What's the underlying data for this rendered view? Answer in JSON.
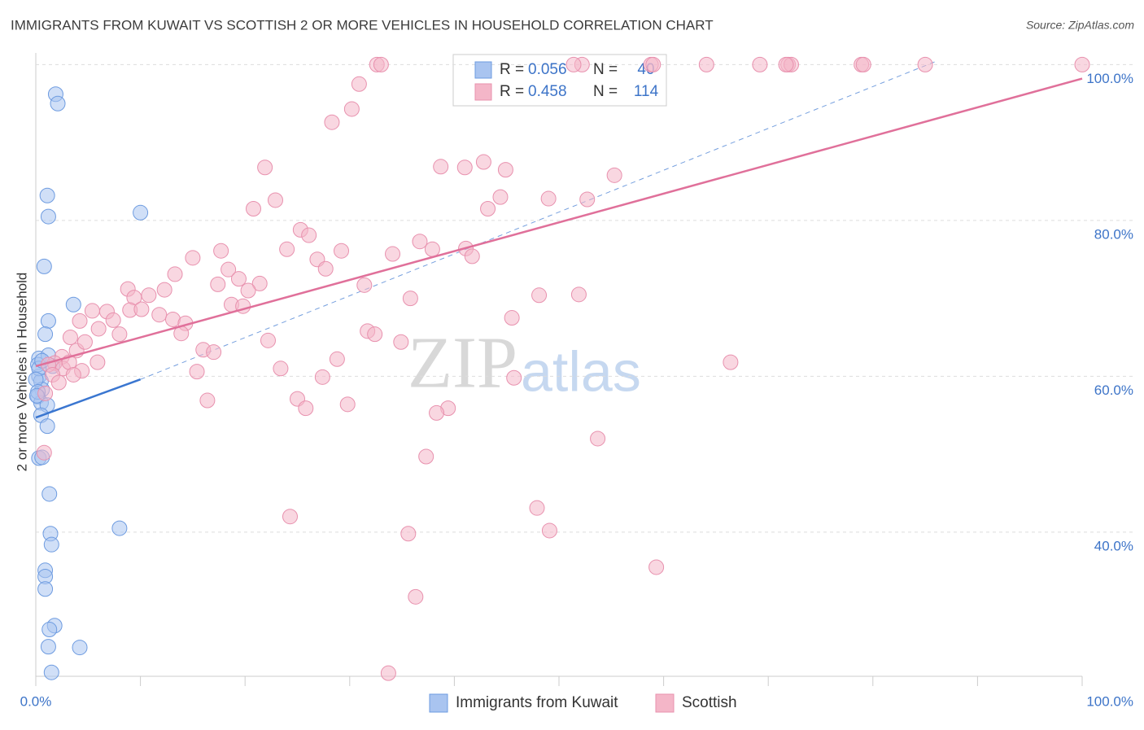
{
  "chart_data": {
    "type": "scatter",
    "title": "IMMIGRANTS FROM KUWAIT VS SCOTTISH 2 OR MORE VEHICLES IN HOUSEHOLD CORRELATION CHART",
    "source": "Source: ZipAtlas.com",
    "y_label": "2 or more Vehicles in Household",
    "watermark": [
      "ZIP",
      "atlas"
    ],
    "xlim": [
      0,
      100
    ],
    "ylim": [
      21.5,
      101.5
    ],
    "xticks": [
      {
        "value": 0,
        "label": "0.0%"
      },
      {
        "value": 100,
        "label": "100.0%"
      }
    ],
    "yticks": [
      {
        "value": 40,
        "label": "40.0%"
      },
      {
        "value": 60,
        "label": "60.0%"
      },
      {
        "value": 80,
        "label": "80.0%"
      },
      {
        "value": 100,
        "label": "100.0%"
      }
    ],
    "grid": true,
    "series": [
      {
        "name": "Immigrants from Kuwait",
        "color": "#6d9be0",
        "fill": "#a9c4f0",
        "line_color": "#3a76d0",
        "stats": {
          "r_label": "R = ",
          "r": "0.056",
          "n_label": "N = ",
          "n": "40"
        },
        "trend_solid": {
          "x": [
            0,
            10
          ],
          "y": [
            54.7,
            59.6
          ]
        },
        "trend_dashed": {
          "x": [
            10,
            86
          ],
          "y": [
            59.6,
            100.4
          ]
        },
        "x": [
          1.9,
          2.1,
          1.1,
          1.2,
          10.0,
          0.8,
          3.6,
          1.2,
          0.9,
          0.3,
          1.2,
          1.6,
          0.3,
          0.5,
          0.6,
          0.2,
          0.5,
          1.1,
          0.5,
          1.1,
          0.3,
          0.6,
          1.3,
          1.4,
          1.5,
          8.0,
          0.9,
          0.9,
          0.9,
          1.8,
          1.3,
          1.2,
          4.2,
          1.5,
          0.2,
          0.3,
          0.0,
          0.2,
          0.1,
          0.6
        ],
        "values": [
          96.2,
          95.0,
          83.2,
          80.5,
          81.0,
          74.1,
          69.2,
          67.1,
          65.4,
          62.3,
          62.7,
          61.3,
          60.0,
          59.4,
          58.3,
          57.4,
          56.6,
          56.3,
          55.0,
          53.6,
          49.5,
          49.6,
          44.9,
          39.8,
          38.4,
          40.5,
          35.1,
          34.3,
          32.7,
          28.0,
          27.5,
          25.3,
          25.2,
          22.0,
          61.5,
          61.0,
          59.6,
          58.0,
          57.5,
          62.0
        ]
      },
      {
        "name": "Scottish",
        "color": "#e891ae",
        "fill": "#f4b6c8",
        "line_color": "#e0709a",
        "stats": {
          "r_label": "R = ",
          "r": "0.458",
          "n_label": "N = ",
          "n": "114"
        },
        "trend_solid": {
          "x": [
            0,
            100
          ],
          "y": [
            61.3,
            98.2
          ]
        },
        "x": [
          30.9,
          30.2,
          28.3,
          21.9,
          22.9,
          20.8,
          38.7,
          41.0,
          42.8,
          44.9,
          55.3,
          49.0,
          44.4,
          52.7,
          43.2,
          25.3,
          26.1,
          24.0,
          17.7,
          15.0,
          29.2,
          36.7,
          34.1,
          37.9,
          41.1,
          41.7,
          26.9,
          27.7,
          18.4,
          13.3,
          19.4,
          17.4,
          21.4,
          8.8,
          12.3,
          10.8,
          20.3,
          9.4,
          31.4,
          35.8,
          48.1,
          51.9,
          18.7,
          19.8,
          5.4,
          6.8,
          9.0,
          10.1,
          11.8,
          13.1,
          14.3,
          4.2,
          7.4,
          45.5,
          6.0,
          8.0,
          13.9,
          31.7,
          32.4,
          22.2,
          34.9,
          3.3,
          16.0,
          17.0,
          3.9,
          2.5,
          28.8,
          1.8,
          2.6,
          4.4,
          1.2,
          1.6,
          15.4,
          23.4,
          66.4,
          27.4,
          45.7,
          0.9,
          16.4,
          25.0,
          29.8,
          25.8,
          39.4,
          38.3,
          53.7,
          37.3,
          0.8,
          24.3,
          47.9,
          35.6,
          49.1,
          59.3,
          36.3,
          33.7,
          32.6,
          33.0,
          52.2,
          58.8,
          64.1,
          69.2,
          71.9,
          72.2,
          78.9,
          85.0,
          100.0,
          51.4,
          59.0,
          71.7,
          79.1,
          3.2,
          4.7,
          5.9,
          2.2,
          3.6
        ],
        "values": [
          97.5,
          94.3,
          92.6,
          86.8,
          82.6,
          81.5,
          86.9,
          86.8,
          87.5,
          86.5,
          85.8,
          82.8,
          83.0,
          82.7,
          81.5,
          78.8,
          78.1,
          76.3,
          76.1,
          75.2,
          76.1,
          77.3,
          75.7,
          76.3,
          76.4,
          75.4,
          75.0,
          73.8,
          73.7,
          73.1,
          72.5,
          71.8,
          71.9,
          71.2,
          71.1,
          70.4,
          71.0,
          70.1,
          71.7,
          70.0,
          70.4,
          70.5,
          69.2,
          69.0,
          68.4,
          68.3,
          68.5,
          68.6,
          67.9,
          67.3,
          66.8,
          67.1,
          67.2,
          67.5,
          66.1,
          65.4,
          65.5,
          65.8,
          65.4,
          64.6,
          64.4,
          65.0,
          63.4,
          63.1,
          63.3,
          62.5,
          62.2,
          61.7,
          61.0,
          60.7,
          61.5,
          60.2,
          60.6,
          61.0,
          61.8,
          59.9,
          59.8,
          57.8,
          56.9,
          57.1,
          56.4,
          55.9,
          55.9,
          55.3,
          52.0,
          49.7,
          50.2,
          42.0,
          43.1,
          39.8,
          40.2,
          35.5,
          31.7,
          21.9,
          100,
          100,
          100,
          100,
          100,
          100,
          100,
          100,
          100,
          100,
          100,
          100,
          100,
          100,
          100,
          61.8,
          64.4,
          61.8,
          59.2,
          60.2
        ]
      }
    ]
  }
}
